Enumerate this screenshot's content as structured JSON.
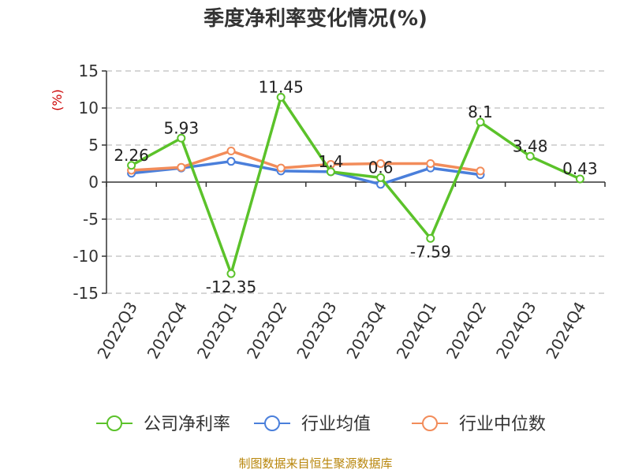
{
  "chart_data": {
    "type": "line",
    "title": "季度净利率变化情况(%)",
    "ylabel": "(%)",
    "xlabel": "",
    "ylim": [
      -15,
      15
    ],
    "yticks": [
      15,
      10,
      5,
      0,
      -5,
      -10,
      -15
    ],
    "categories": [
      "2022Q3",
      "2022Q4",
      "2023Q1",
      "2023Q2",
      "2023Q3",
      "2023Q4",
      "2024Q1",
      "2024Q2",
      "2024Q3",
      "2024Q4"
    ],
    "grid": true,
    "legend_position": "bottom",
    "series": [
      {
        "name": "公司净利率",
        "color": "#5bc22a",
        "values": [
          2.26,
          5.93,
          -12.35,
          11.45,
          1.4,
          0.6,
          -7.59,
          8.1,
          3.48,
          0.43
        ],
        "labels": [
          "2.26",
          "5.93",
          "-12.35",
          "11.45",
          "1.4",
          "0.6",
          "-7.59",
          "8.1",
          "3.48",
          "0.43"
        ]
      },
      {
        "name": "行业均值",
        "color": "#4a7fdb",
        "values": [
          1.2,
          1.9,
          2.8,
          1.5,
          1.4,
          -0.3,
          1.9,
          1.0,
          null,
          null
        ]
      },
      {
        "name": "行业中位数",
        "color": "#f28c5a",
        "values": [
          1.6,
          2.0,
          4.2,
          1.9,
          2.4,
          2.5,
          2.5,
          1.5,
          null,
          null
        ]
      }
    ]
  },
  "source": "制图数据来自恒生聚源数据库"
}
